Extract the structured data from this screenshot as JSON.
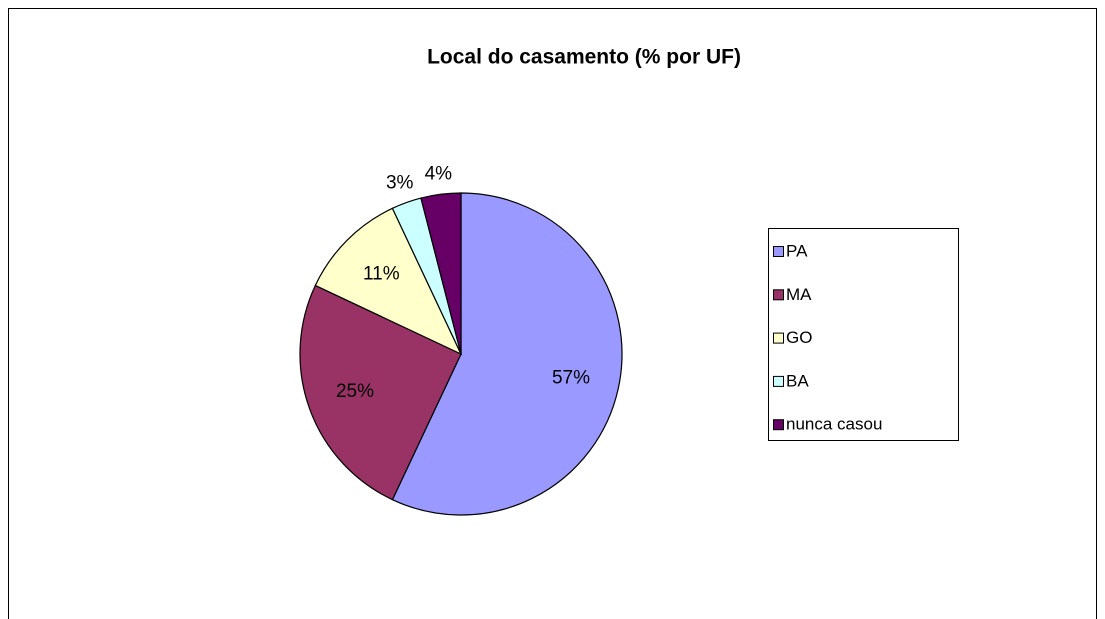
{
  "chart_data": {
    "type": "pie",
    "title": "Local do casamento (% por UF)",
    "categories": [
      "PA",
      "MA",
      "GO",
      "BA",
      "nunca casou"
    ],
    "values": [
      57,
      25,
      11,
      3,
      4
    ],
    "value_labels": [
      "57%",
      "25%",
      "11%",
      "3%",
      "4%"
    ],
    "colors": [
      "#9999ff",
      "#993366",
      "#ffffcc",
      "#ccffff",
      "#660066"
    ],
    "legend": "right"
  }
}
